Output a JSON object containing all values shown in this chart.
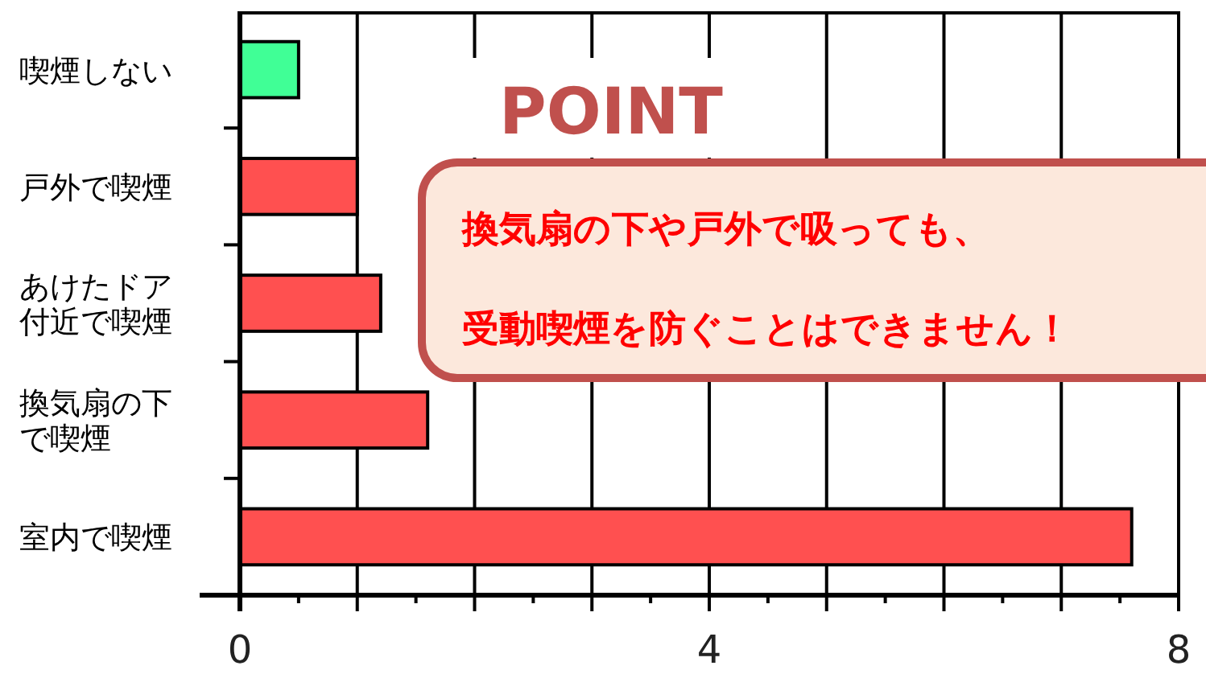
{
  "chart_data": {
    "type": "bar",
    "orientation": "horizontal",
    "categories": [
      "喫煙しない",
      "戸外で喫煙",
      "あけたドア付近で喫煙",
      "換気扇の下で喫煙",
      "室内で喫煙"
    ],
    "values": [
      0.5,
      1.0,
      1.2,
      1.6,
      7.6
    ],
    "colors": [
      "#40ff96",
      "#ff5050",
      "#ff5050",
      "#ff5050",
      "#ff5050"
    ],
    "xlim": [
      0,
      8
    ],
    "xticks": [
      0,
      {
        "value": 1,
        "label": null
      },
      {
        "value": 2,
        "label": null
      },
      {
        "value": 3,
        "label": null
      },
      4,
      {
        "value": 5,
        "label": null
      },
      {
        "value": 6,
        "label": null
      },
      {
        "value": 7,
        "label": null
      },
      8
    ],
    "grid": "x",
    "annotations": [
      "POINT",
      "換気扇の下や戸外で吸っても、",
      "受動喫煙を防ぐことはできません！"
    ]
  }
}
